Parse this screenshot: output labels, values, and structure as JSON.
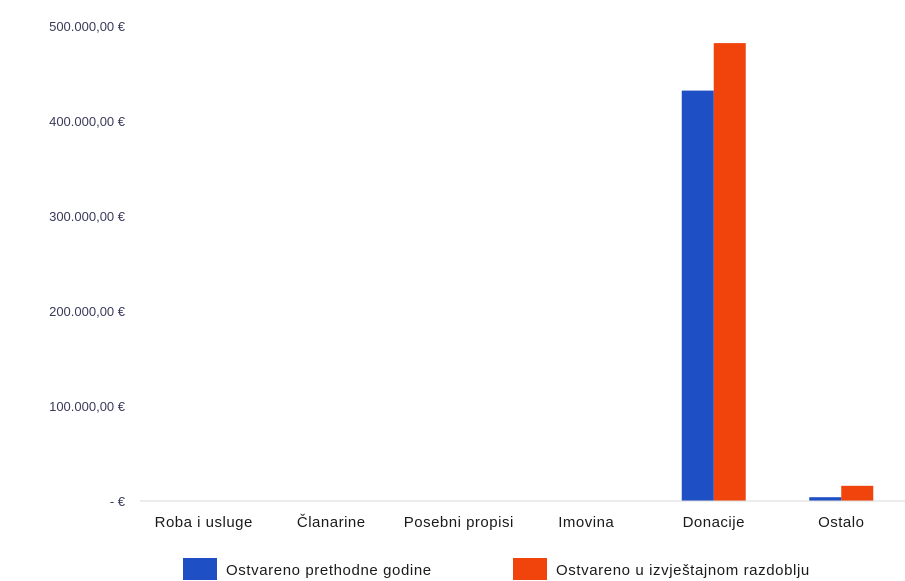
{
  "chart_data": {
    "type": "bar",
    "categories": [
      "Roba i usluge",
      "Članarine",
      "Posebni propisi",
      "Imovina",
      "Donacije",
      "Ostalo"
    ],
    "series": [
      {
        "name": "Ostvareno prethodne godine",
        "color": "#1f4fc4",
        "values": [
          0,
          0,
          0,
          0,
          432000,
          4000
        ]
      },
      {
        "name": "Ostvareno u izvještajnom razdoblju",
        "color": "#f0440c",
        "values": [
          0,
          0,
          0,
          0,
          482000,
          16000
        ]
      }
    ],
    "yticks": [
      {
        "value": 0,
        "label": "- €"
      },
      {
        "value": 100000,
        "label": "100.000,00 €"
      },
      {
        "value": 200000,
        "label": "200.000,00 €"
      },
      {
        "value": 300000,
        "label": "300.000,00 €"
      },
      {
        "value": 400000,
        "label": "400.000,00 €"
      },
      {
        "value": 500000,
        "label": "500.000,00 €"
      }
    ],
    "ylim": [
      0,
      500000
    ],
    "grid": false,
    "legend": "bottom"
  }
}
